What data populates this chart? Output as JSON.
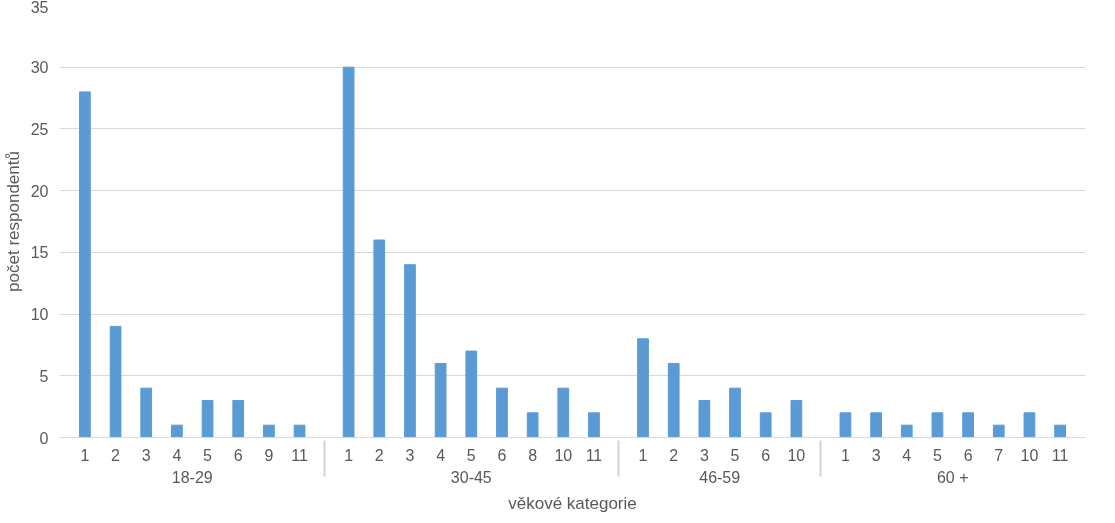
{
  "chart_data": {
    "type": "bar",
    "xlabel": "věkové kategorie",
    "ylabel": "počet respondentů",
    "categories": [
      [
        "18-29",
        "1"
      ],
      [
        null,
        "2"
      ],
      [
        null,
        "3"
      ],
      [
        null,
        "4"
      ],
      [
        null,
        "5"
      ],
      [
        null,
        "6"
      ],
      [
        null,
        "9"
      ],
      [
        null,
        "11"
      ],
      [
        "30-45",
        "1"
      ],
      [
        null,
        "2"
      ],
      [
        null,
        "3"
      ],
      [
        null,
        "4"
      ],
      [
        null,
        "5"
      ],
      [
        null,
        "6"
      ],
      [
        null,
        "8"
      ],
      [
        null,
        "10"
      ],
      [
        null,
        "11"
      ],
      [
        "46-59",
        "1"
      ],
      [
        null,
        "2"
      ],
      [
        null,
        "3"
      ],
      [
        null,
        "5"
      ],
      [
        null,
        "6"
      ],
      [
        null,
        "10"
      ],
      [
        "60 +",
        "1"
      ],
      [
        null,
        "3"
      ],
      [
        null,
        "4"
      ],
      [
        null,
        "5"
      ],
      [
        null,
        "6"
      ],
      [
        null,
        "7"
      ],
      [
        null,
        "10"
      ],
      [
        null,
        "11"
      ]
    ],
    "values": [
      28,
      9,
      4,
      1,
      3,
      3,
      1,
      1,
      30,
      16,
      14,
      6,
      7,
      4,
      2,
      4,
      2,
      8,
      6,
      3,
      4,
      2,
      3,
      2,
      2,
      1,
      2,
      2,
      1,
      2,
      1
    ],
    "color": "#5b9bd5",
    "ylim": [
      0,
      35
    ],
    "yticks": [
      0,
      5,
      10,
      15,
      20,
      25,
      30,
      35
    ],
    "grid": "y"
  }
}
